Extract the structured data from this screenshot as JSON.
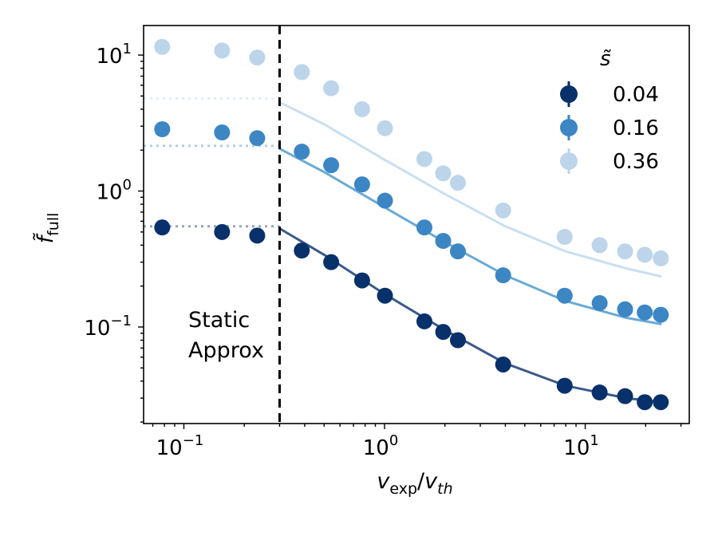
{
  "chart_data": {
    "type": "scatter",
    "title": "",
    "xlabel": {
      "main": "v",
      "sub1": "exp",
      "sep": "/",
      "main2": "v",
      "sub2": "th"
    },
    "ylabel": {
      "main": "f̃",
      "sub": "full"
    },
    "xscale": "log",
    "yscale": "log",
    "xlim": [
      0.063,
      33
    ],
    "ylim": [
      0.0195,
      16.5
    ],
    "x_ticks": [
      {
        "value": 0.1,
        "base": "10",
        "exp": "−1"
      },
      {
        "value": 1,
        "base": "10",
        "exp": "0"
      },
      {
        "value": 10,
        "base": "10",
        "exp": "1"
      }
    ],
    "y_ticks": [
      {
        "value": 0.1,
        "base": "10",
        "exp": "−1"
      },
      {
        "value": 1,
        "base": "10",
        "exp": "0"
      },
      {
        "value": 10,
        "base": "10",
        "exp": "1"
      }
    ],
    "legend": {
      "title": "s̃",
      "position": "top-right"
    },
    "static_cutoff": 0.3,
    "annotation": [
      "Static",
      "Approx"
    ],
    "series": [
      {
        "name": "0.04",
        "color": "#08306b",
        "line_color": "#3a5a8c",
        "static_level": 0.55,
        "x": [
          0.078,
          0.155,
          0.232,
          0.387,
          0.542,
          0.773,
          1.005,
          1.58,
          1.96,
          2.32,
          3.9,
          7.9,
          11.8,
          15.8,
          19.8,
          23.8
        ],
        "y": [
          0.54,
          0.5,
          0.47,
          0.365,
          0.3,
          0.22,
          0.17,
          0.11,
          0.092,
          0.08,
          0.053,
          0.037,
          0.033,
          0.031,
          0.028,
          0.028
        ],
        "fit_x": [
          0.3,
          0.5,
          1,
          2,
          4,
          8,
          16,
          24
        ],
        "fit_y": [
          0.53,
          0.34,
          0.175,
          0.095,
          0.054,
          0.037,
          0.03,
          0.028
        ]
      },
      {
        "name": "0.16",
        "color": "#3c86c4",
        "line_color": "#6aaad6",
        "static_level": 2.15,
        "x": [
          0.078,
          0.155,
          0.232,
          0.387,
          0.542,
          0.773,
          1.005,
          1.58,
          1.96,
          2.32,
          3.9,
          7.9,
          11.8,
          15.8,
          19.8,
          23.8
        ],
        "y": [
          2.85,
          2.7,
          2.45,
          1.95,
          1.55,
          1.12,
          0.85,
          0.54,
          0.43,
          0.36,
          0.24,
          0.17,
          0.15,
          0.135,
          0.128,
          0.123
        ],
        "fit_x": [
          0.3,
          0.5,
          1,
          2,
          4,
          8,
          16,
          24
        ],
        "fit_y": [
          2.05,
          1.38,
          0.76,
          0.42,
          0.24,
          0.155,
          0.117,
          0.105
        ]
      },
      {
        "name": "0.36",
        "color": "#bcd5ea",
        "line_color": "#c9dff0",
        "static_level": 4.8,
        "x": [
          0.078,
          0.155,
          0.232,
          0.387,
          0.542,
          0.773,
          1.005,
          1.58,
          1.96,
          2.32,
          3.9,
          7.9,
          11.8,
          15.8,
          19.8,
          23.8
        ],
        "y": [
          11.5,
          10.8,
          9.6,
          7.5,
          5.7,
          4.0,
          2.9,
          1.72,
          1.35,
          1.15,
          0.72,
          0.46,
          0.4,
          0.36,
          0.34,
          0.32
        ],
        "fit_x": [
          0.3,
          0.5,
          1,
          2,
          4,
          8,
          16,
          24
        ],
        "fit_y": [
          4.5,
          3.1,
          1.7,
          0.95,
          0.55,
          0.36,
          0.27,
          0.235
        ]
      }
    ]
  }
}
